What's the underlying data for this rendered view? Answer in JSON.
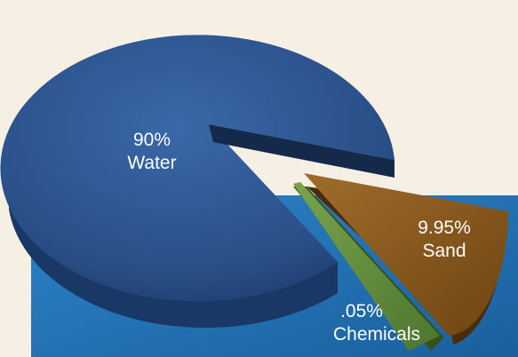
{
  "chart_data": {
    "type": "pie",
    "title": "",
    "slices": [
      {
        "percent_label": "90%",
        "name": "Water",
        "value": 90,
        "color": "#2b5592"
      },
      {
        "percent_label": "9.95%",
        "name": "Sand",
        "value": 9.95,
        "color": "#8a5a1c"
      },
      {
        "percent_label": ".05%",
        "name": "Chemicals",
        "value": 0.05,
        "color": "#5f8a3c"
      }
    ]
  },
  "colors": {
    "background": "#f6efe4",
    "backdrop_blue": "#1f73b7",
    "water_top": "#2b5592",
    "water_side": "#16305a",
    "sand_top": "#8a5a1c",
    "sand_side": "#4a2c0a",
    "chem_top": "#5f8a3c",
    "chem_side": "#34521c"
  }
}
